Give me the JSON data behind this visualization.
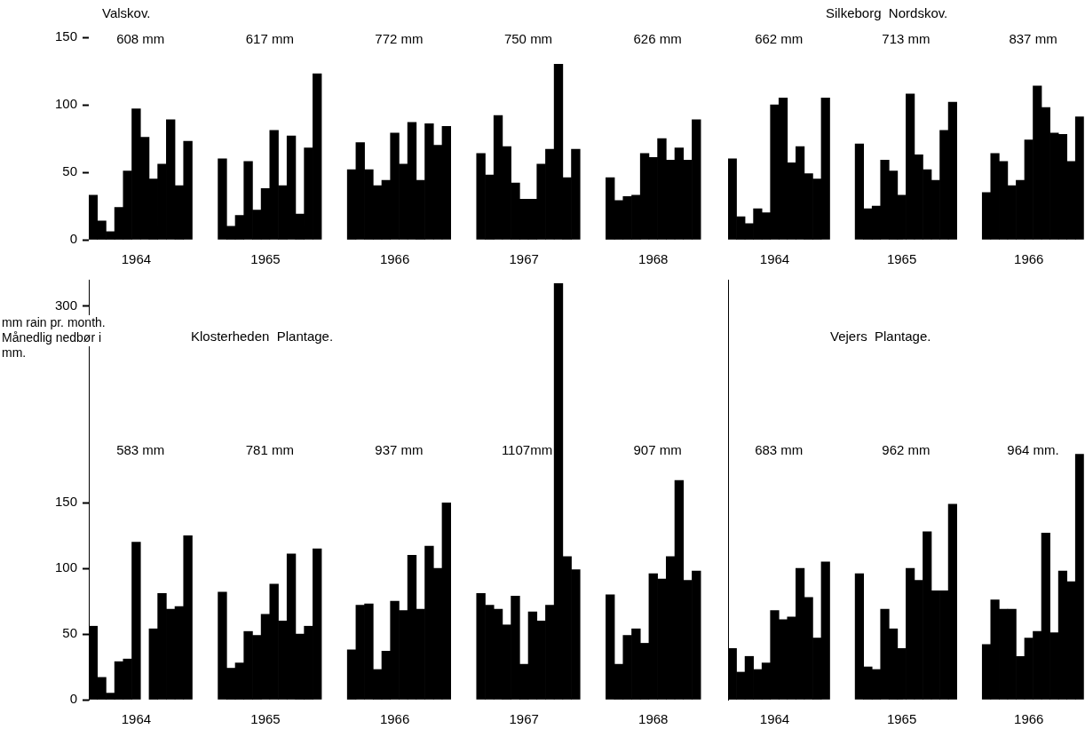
{
  "chart_data": [
    {
      "type": "bar",
      "title": "Valskov.",
      "color": "#000000",
      "ylim": [
        0,
        150
      ],
      "yticks": [
        0,
        50,
        100,
        150
      ],
      "categories": [
        null,
        null,
        null,
        null,
        null,
        "1964",
        null,
        null,
        null,
        null,
        null,
        null,
        null,
        null,
        null,
        null,
        null,
        null,
        null,
        null,
        "1965",
        null,
        null,
        null,
        null,
        null,
        null,
        null,
        null,
        null,
        null,
        null,
        null,
        null,
        null,
        "1966",
        null,
        null,
        null,
        null,
        null,
        null,
        null,
        null,
        null,
        null,
        null,
        null,
        null,
        null,
        "1967",
        null,
        null,
        null,
        null,
        null,
        null,
        null,
        null,
        null,
        null,
        null,
        null,
        null,
        null,
        "1968",
        null,
        null,
        null,
        null,
        null,
        null
      ],
      "values": [
        33,
        14,
        6,
        24,
        51,
        97,
        76,
        45,
        56,
        89,
        40,
        73,
        null,
        null,
        null,
        60,
        10,
        18,
        58,
        22,
        38,
        81,
        40,
        77,
        19,
        68,
        123,
        null,
        null,
        null,
        52,
        72,
        52,
        40,
        44,
        79,
        56,
        87,
        44,
        86,
        70,
        84,
        null,
        null,
        null,
        64,
        48,
        92,
        69,
        42,
        30,
        30,
        56,
        67,
        130,
        46,
        67,
        null,
        null,
        null,
        46,
        29,
        32,
        33,
        64,
        61,
        75,
        59,
        68,
        59,
        89,
        null
      ],
      "annotations": [
        "608 mm",
        "617 mm",
        "772 mm",
        "750 mm",
        "626 mm"
      ]
    },
    {
      "type": "bar",
      "title": "Silkeborg  Nordskov.",
      "color": "#000000",
      "ylim": [
        0,
        150
      ],
      "yticks": [
        0,
        50,
        100,
        150
      ],
      "tick_labels": "x",
      "categories": [
        null,
        null,
        null,
        null,
        null,
        "1964",
        null,
        null,
        null,
        null,
        null,
        null,
        null,
        null,
        null,
        null,
        null,
        null,
        null,
        null,
        "1965",
        null,
        null,
        null,
        null,
        null,
        null,
        null,
        null,
        null,
        null,
        null,
        null,
        null,
        null,
        "1966",
        null,
        null,
        null,
        null,
        null,
        null
      ],
      "values": [
        60,
        17,
        12,
        23,
        20,
        100,
        105,
        57,
        69,
        49,
        45,
        105,
        null,
        null,
        null,
        71,
        23,
        25,
        59,
        51,
        33,
        108,
        63,
        52,
        44,
        81,
        102,
        null,
        null,
        null,
        35,
        64,
        58,
        40,
        44,
        74,
        114,
        98,
        79,
        78,
        58,
        91
      ],
      "annotations": [
        "662 mm",
        "713 mm",
        "837 mm"
      ]
    },
    {
      "type": "bar",
      "title": "Klosterheden  Plantage.",
      "ylabel": "mm  rain pr. month. Månedlig nedbør i mm.",
      "color": "#000000",
      "ylim": [
        0,
        320
      ],
      "yticks": [
        0,
        50,
        100,
        150,
        300
      ],
      "categories": [
        null,
        null,
        null,
        null,
        null,
        "1964",
        null,
        null,
        null,
        null,
        null,
        null,
        null,
        null,
        null,
        null,
        null,
        null,
        null,
        null,
        "1965",
        null,
        null,
        null,
        null,
        null,
        null,
        null,
        null,
        null,
        null,
        null,
        null,
        null,
        null,
        "1966",
        null,
        null,
        null,
        null,
        null,
        null,
        null,
        null,
        null,
        null,
        null,
        null,
        null,
        null,
        "1967",
        null,
        null,
        null,
        null,
        null,
        null,
        null,
        null,
        null,
        null,
        null,
        null,
        null,
        null,
        "1968",
        null,
        null,
        null,
        null,
        null,
        null
      ],
      "values": [
        56,
        17,
        5,
        29,
        31,
        120,
        null,
        54,
        81,
        69,
        71,
        125,
        null,
        null,
        null,
        82,
        24,
        28,
        52,
        49,
        65,
        88,
        60,
        111,
        50,
        56,
        115,
        null,
        null,
        null,
        38,
        72,
        73,
        23,
        37,
        75,
        68,
        110,
        69,
        117,
        100,
        150,
        null,
        null,
        null,
        81,
        72,
        69,
        57,
        79,
        27,
        67,
        60,
        72,
        317,
        109,
        99,
        null,
        null,
        null,
        80,
        27,
        49,
        54,
        43,
        96,
        92,
        109,
        167,
        91,
        98,
        null
      ],
      "annotations": [
        "583 mm",
        "781 mm",
        "937 mm",
        "1107mm",
        "907 mm"
      ]
    },
    {
      "type": "bar",
      "title": "Vejers  Plantage.",
      "color": "#000000",
      "ylim": [
        0,
        320
      ],
      "yticks": [
        0,
        50,
        100,
        150,
        300
      ],
      "tick_labels": "x",
      "categories": [
        null,
        null,
        null,
        null,
        null,
        "1964",
        null,
        null,
        null,
        null,
        null,
        null,
        null,
        null,
        null,
        null,
        null,
        null,
        null,
        null,
        "1965",
        null,
        null,
        null,
        null,
        null,
        null,
        null,
        null,
        null,
        null,
        null,
        null,
        null,
        null,
        "1966",
        null,
        null,
        null,
        null,
        null,
        null
      ],
      "values": [
        39,
        21,
        33,
        23,
        28,
        68,
        61,
        63,
        100,
        78,
        47,
        105,
        null,
        null,
        null,
        96,
        25,
        23,
        69,
        54,
        39,
        100,
        91,
        128,
        83,
        83,
        149,
        null,
        null,
        null,
        42,
        76,
        69,
        69,
        33,
        47,
        52,
        127,
        51,
        98,
        90,
        187
      ],
      "annotations": [
        "683 mm",
        "962 mm",
        "964 mm."
      ]
    }
  ]
}
